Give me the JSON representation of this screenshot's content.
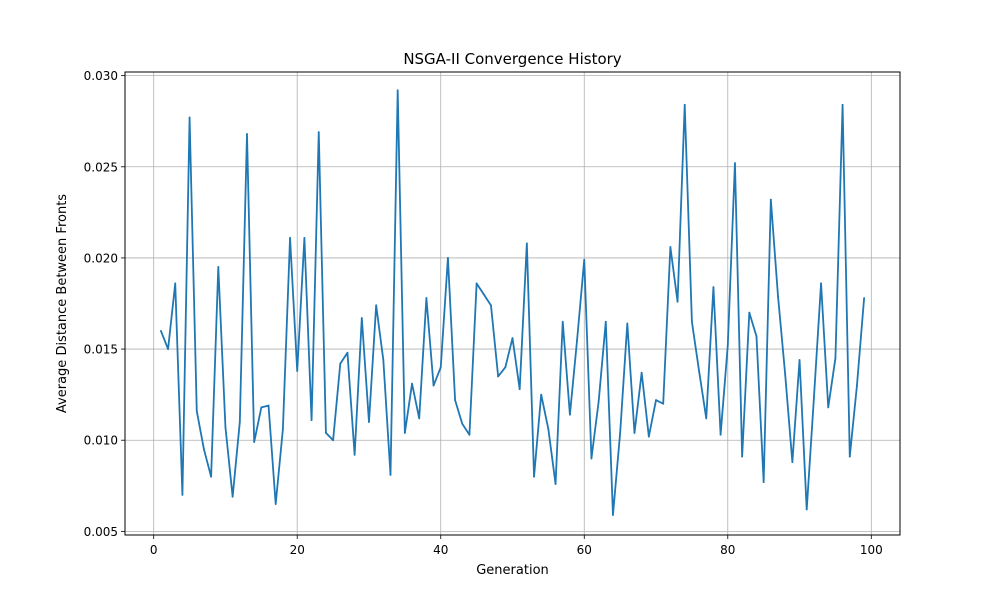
{
  "chart_data": {
    "type": "line",
    "title": "NSGA-II Convergence History",
    "xlabel": "Generation",
    "ylabel": "Average Distance Between Fronts",
    "xlim": [
      -4,
      104
    ],
    "ylim": [
      0.0048,
      0.0302
    ],
    "x_ticks": [
      0,
      20,
      40,
      60,
      80,
      100
    ],
    "x_tick_labels": [
      "0",
      "20",
      "40",
      "60",
      "80",
      "100"
    ],
    "y_ticks": [
      0.005,
      0.01,
      0.015,
      0.02,
      0.025,
      0.03
    ],
    "y_tick_labels": [
      "0.005",
      "0.010",
      "0.015",
      "0.020",
      "0.025",
      "0.030"
    ],
    "grid": true,
    "series": [
      {
        "color": "#1f77b4",
        "x": [
          1,
          2,
          3,
          4,
          5,
          6,
          7,
          8,
          9,
          10,
          11,
          12,
          13,
          14,
          15,
          16,
          17,
          18,
          19,
          20,
          21,
          22,
          23,
          24,
          25,
          26,
          27,
          28,
          29,
          30,
          31,
          32,
          33,
          34,
          35,
          36,
          37,
          38,
          39,
          40,
          41,
          42,
          43,
          44,
          45,
          46,
          47,
          48,
          49,
          50,
          51,
          52,
          53,
          54,
          55,
          56,
          57,
          58,
          59,
          60,
          61,
          62,
          63,
          64,
          65,
          66,
          67,
          68,
          69,
          70,
          71,
          72,
          73,
          74,
          75,
          76,
          77,
          78,
          79,
          80,
          81,
          82,
          83,
          84,
          85,
          86,
          87,
          88,
          89,
          90,
          91,
          92,
          93,
          94,
          95,
          96,
          97,
          98,
          99
        ],
        "y": [
          0.016,
          0.015,
          0.0186,
          0.007,
          0.0277,
          0.0116,
          0.0095,
          0.008,
          0.0195,
          0.0107,
          0.0069,
          0.011,
          0.0268,
          0.0099,
          0.0118,
          0.0119,
          0.0065,
          0.0106,
          0.0211,
          0.0138,
          0.0211,
          0.0111,
          0.0269,
          0.0104,
          0.01,
          0.0142,
          0.0148,
          0.0092,
          0.0167,
          0.011,
          0.0174,
          0.0144,
          0.0081,
          0.0292,
          0.0104,
          0.0131,
          0.0112,
          0.0178,
          0.013,
          0.014,
          0.02,
          0.0122,
          0.0109,
          0.0103,
          0.0186,
          0.018,
          0.0174,
          0.0135,
          0.014,
          0.0156,
          0.0128,
          0.0208,
          0.008,
          0.0125,
          0.0106,
          0.0076,
          0.0165,
          0.0114,
          0.0155,
          0.0199,
          0.009,
          0.0121,
          0.0165,
          0.0059,
          0.0104,
          0.0164,
          0.0104,
          0.0137,
          0.0102,
          0.0122,
          0.012,
          0.0206,
          0.0176,
          0.0284,
          0.0165,
          0.0138,
          0.0112,
          0.0184,
          0.0103,
          0.0152,
          0.0252,
          0.0091,
          0.017,
          0.0157,
          0.0077,
          0.0232,
          0.0179,
          0.0136,
          0.0088,
          0.0144,
          0.0062,
          0.0123,
          0.0186,
          0.0118,
          0.0145,
          0.0284,
          0.0091,
          0.013,
          0.0178
        ]
      }
    ]
  }
}
